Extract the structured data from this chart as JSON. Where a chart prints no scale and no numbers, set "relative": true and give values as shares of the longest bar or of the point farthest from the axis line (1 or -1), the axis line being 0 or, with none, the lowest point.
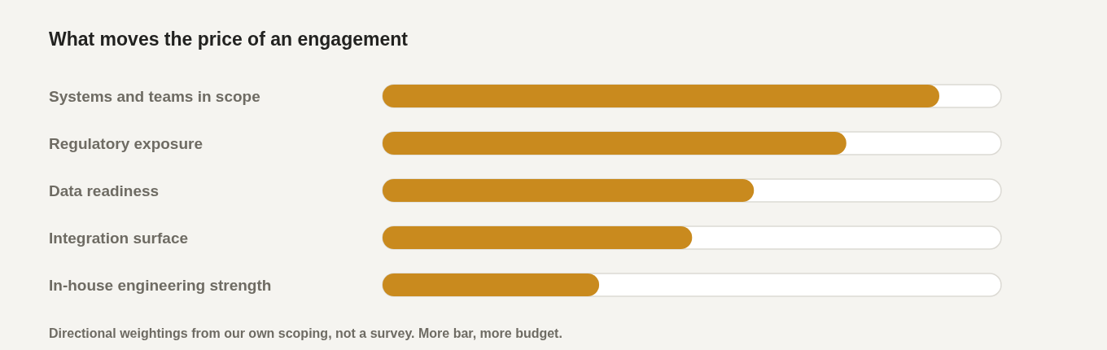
{
  "chart_data": {
    "type": "bar",
    "orientation": "horizontal",
    "relative": true,
    "title": "What moves the price of an engagement",
    "categories": [
      "Systems and teams in scope",
      "Regulatory exposure",
      "Data readiness",
      "Integration surface",
      "In-house engineering strength"
    ],
    "values": [
      1,
      0.833,
      0.667,
      0.556,
      0.389
    ],
    "color": "#c98a1e",
    "annotations": [
      "Directional weightings from our own scoping, not a survey. More bar, more budget."
    ]
  }
}
